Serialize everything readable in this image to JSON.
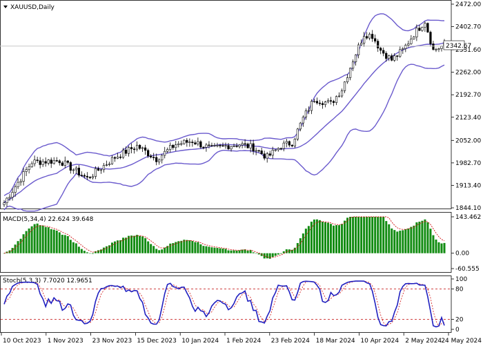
{
  "header": {
    "symbol_label": "XAUUSD,Daily"
  },
  "colors": {
    "background": "#ffffff",
    "candle": "#000000",
    "bollinger": "#6a5acd",
    "macd_hist": "#128c12",
    "macd_signal": "#d01010",
    "stoch_main": "#2020c0",
    "stoch_signal": "#d01010",
    "levels": "#c00000",
    "grid": "#c8c8c8",
    "price_tag_bg": "#ffffff"
  },
  "price_panel": {
    "y_ticks": [
      "2472.00",
      "2402.70",
      "2331.60",
      "2262.00",
      "2192.70",
      "2123.40",
      "2052.00",
      "1982.70",
      "1913.40",
      "1844.10"
    ],
    "current_price_label": "2342.67"
  },
  "macd_panel": {
    "title": "MACD(5,34,4) 22.624 39.648",
    "y_ticks": [
      "143.462",
      "0.00",
      "-60.555"
    ]
  },
  "stoch_panel": {
    "title": "Stoch(5,3,3) 7.7020 12.9651",
    "y_ticks": [
      "100",
      "80",
      "20",
      "0"
    ]
  },
  "time_axis": {
    "labels": [
      "10 Oct 2023",
      "1 Nov 2023",
      "23 Nov 2023",
      "15 Dec 2023",
      "10 Jan 2024",
      "1 Feb 2024",
      "23 Feb 2024",
      "18 Mar 2024",
      "10 Apr 2024",
      "2 May 2024",
      "24 May 2024"
    ]
  },
  "chart_data": {
    "type": "line",
    "instrument": "XAUUSD",
    "timeframe": "Daily",
    "x": [
      "10 Oct 2023",
      "1 Nov 2023",
      "23 Nov 2023",
      "15 Dec 2023",
      "10 Jan 2024",
      "1 Feb 2024",
      "23 Feb 2024",
      "18 Mar 2024",
      "10 Apr 2024",
      "2 May 2024",
      "24 May 2024"
    ],
    "series": [
      {
        "values": [
          1862,
          1985,
          2035,
          2042,
          2030,
          2025,
          2040,
          2160,
          2360,
          2305,
          2335
        ]
      }
    ],
    "ylim": [
      1844.1,
      2472.0
    ],
    "macd": {
      "params": "5,34,4",
      "main": 22.624,
      "signal": 39.648,
      "ylim": [
        -60.555,
        143.462
      ]
    },
    "stochastic": {
      "params": "5,3,3",
      "main": 7.702,
      "signal": 12.9651,
      "levels": [
        80,
        20
      ],
      "ylim": [
        0,
        100
      ]
    }
  }
}
